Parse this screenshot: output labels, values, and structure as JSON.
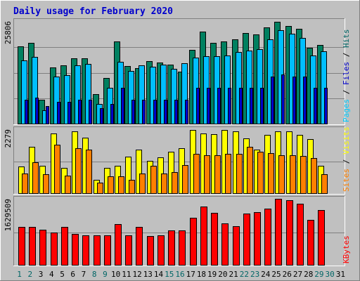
{
  "chart_data": {
    "type": "bar",
    "title": "Daily usage for February 2020",
    "x": {
      "labels": [
        "1",
        "2",
        "3",
        "4",
        "5",
        "6",
        "7",
        "8",
        "9",
        "10",
        "11",
        "12",
        "13",
        "14",
        "15",
        "16",
        "17",
        "18",
        "19",
        "20",
        "21",
        "22",
        "23",
        "24",
        "25",
        "26",
        "27",
        "28",
        "29",
        "30",
        "31"
      ],
      "label_colors": [
        "#006666",
        "#006666",
        "#000000",
        "#000000",
        "#000000",
        "#000000",
        "#000000",
        "#006666",
        "#006666",
        "#000000",
        "#000000",
        "#000000",
        "#000000",
        "#000000",
        "#006666",
        "#006666",
        "#000000",
        "#000000",
        "#000000",
        "#000000",
        "#000000",
        "#006666",
        "#006666",
        "#000000",
        "#000000",
        "#000000",
        "#000000",
        "#000000",
        "#006666",
        "#006666",
        "#000000"
      ]
    },
    "panels": [
      {
        "name": "hits-files-pages",
        "ymax_label": "25806",
        "ymax": 25806,
        "axis_label_parts": [
          {
            "text": "Pages",
            "color": "#00CCFF"
          },
          {
            "text": " / ",
            "color": "#000000"
          },
          {
            "text": "Files",
            "color": "#0000CC"
          },
          {
            "text": " / ",
            "color": "#000000"
          },
          {
            "text": "Hits",
            "color": "#006666"
          }
        ],
        "series": [
          {
            "name": "Hits",
            "color": "#008060",
            "values": [
              19500,
              20500,
              6000,
              14200,
              14700,
              16500,
              16500,
              7400,
              11500,
              20800,
              14600,
              14000,
              15800,
              15500,
              14900,
              13200,
              18700,
              23300,
              20500,
              20900,
              21400,
              23000,
              22600,
              24400,
              25800,
              24700,
              24000,
              19300,
              20000,
              null,
              null
            ]
          },
          {
            "name": "Files",
            "color": "#00BFFF",
            "values": [
              16100,
              16900,
              3400,
              12000,
              12200,
              14700,
              15200,
              5000,
              9100,
              15600,
              13400,
              14700,
              14500,
              15000,
              13800,
              15300,
              16800,
              17000,
              17100,
              17300,
              18100,
              18500,
              18900,
              21400,
              23600,
              22700,
              21800,
              17300,
              18400,
              null,
              null
            ]
          },
          {
            "name": "Pages",
            "color": "#0000CC",
            "values": [
              6000,
              6500,
              4500,
              5500,
              5500,
              6000,
              6000,
              4000,
              5000,
              9000,
              6000,
              6000,
              6000,
              6000,
              6000,
              6000,
              9000,
              9000,
              9000,
              9000,
              9000,
              9000,
              9000,
              12000,
              12500,
              12000,
              12000,
              9000,
              9000,
              null,
              null
            ]
          }
        ]
      },
      {
        "name": "visits-sites",
        "ymax_label": "2279",
        "ymax": 2279,
        "axis_label_parts": [
          {
            "text": "Sites",
            "color": "#FF8000"
          },
          {
            "text": " / ",
            "color": "#000000"
          },
          {
            "text": "Visits",
            "color": "#FFFF00"
          }
        ],
        "series": [
          {
            "name": "Visits",
            "color": "#FFFF00",
            "values": [
              970,
              1680,
              980,
              2150,
              920,
              2220,
              1990,
              490,
              900,
              980,
              1310,
              1560,
              1170,
              1280,
              1490,
              1620,
              2280,
              2150,
              2120,
              2270,
              2220,
              1970,
              1570,
              2090,
              2230,
              2230,
              2100,
              1960,
              1000,
              null,
              null
            ]
          },
          {
            "name": "Sites",
            "color": "#FF8000",
            "values": [
              700,
              1110,
              690,
              1750,
              630,
              1630,
              1580,
              390,
              610,
              620,
              470,
              700,
              1000,
              720,
              770,
              1020,
              1410,
              1360,
              1380,
              1430,
              1430,
              1670,
              1500,
              1440,
              1360,
              1360,
              1350,
              1260,
              680,
              null,
              null
            ]
          }
        ]
      },
      {
        "name": "kbytes",
        "ymax_label": "1629509",
        "ymax": 1629509,
        "axis_label_parts": [
          {
            "text": "KBytes",
            "color": "#FF0000"
          }
        ],
        "series": [
          {
            "name": "KBytes",
            "color": "#FF0000",
            "values": [
              940000,
              940000,
              870000,
              810000,
              950000,
              770000,
              740000,
              740000,
              740000,
              1010000,
              730000,
              950000,
              710000,
              740000,
              850000,
              860000,
              1180000,
              1460000,
              1290000,
              1030000,
              960000,
              1280000,
              1320000,
              1410000,
              1640000,
              1620000,
              1520000,
              1120000,
              1370000,
              null,
              null
            ]
          }
        ]
      }
    ]
  }
}
